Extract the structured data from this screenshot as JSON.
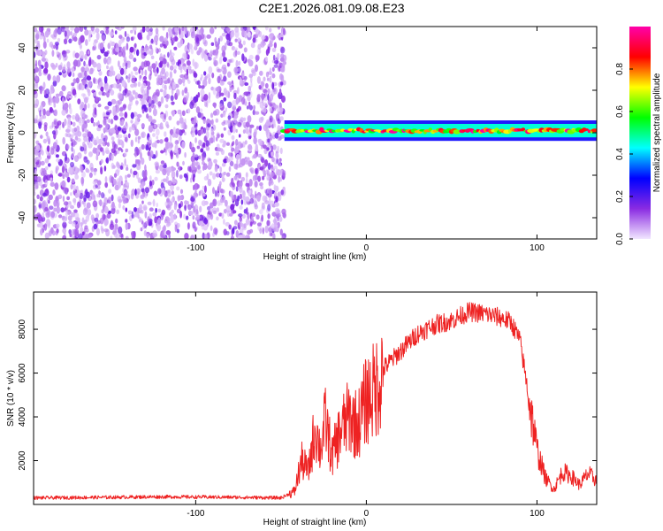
{
  "figure": {
    "title": "C2E1.2026.081.09.08.E23"
  },
  "chart_data": [
    {
      "type": "heatmap",
      "xlabel": "Height of straight line (km)",
      "ylabel": "Frequency (Hz)",
      "xlim": [
        -195,
        135
      ],
      "ylim": [
        -50,
        50
      ],
      "x_ticks": [
        -100,
        0,
        100
      ],
      "y_ticks": [
        -40,
        -20,
        0,
        20,
        40
      ],
      "colorbar": {
        "label": "Normalized spectral amplitude",
        "range": [
          0,
          1
        ],
        "ticks": [
          "0.0",
          "0.2",
          "0.4",
          "0.6",
          "0.8"
        ],
        "colors": [
          "#f2e6ff",
          "#8a2be2",
          "#0000ff",
          "#00ffff",
          "#00ff00",
          "#ffff00",
          "#ff0000",
          "#ff00aa"
        ]
      },
      "regions": [
        {
          "name": "noise",
          "x_range": [
            -195,
            -48
          ],
          "freq_range": [
            -50,
            50
          ],
          "amplitude_range": [
            0.0,
            0.2
          ]
        },
        {
          "name": "signal",
          "x_range": [
            -48,
            135
          ],
          "center_frequency": 1,
          "bandwidth": 4
        }
      ]
    },
    {
      "type": "line",
      "xlabel": "Height of straight line (km)",
      "ylabel": "SNR (10 * v/v)",
      "xlim": [
        -195,
        135
      ],
      "ylim": [
        0,
        9700
      ],
      "x_ticks": [
        -100,
        0,
        100
      ],
      "y_ticks": [
        2000,
        4000,
        6000,
        8000
      ],
      "color": "#ee2222",
      "x": [
        -195,
        -160,
        -120,
        -80,
        -50,
        -42,
        -38,
        -34,
        -30,
        -27,
        -24,
        -20,
        -15,
        -10,
        -5,
        0,
        5,
        10,
        20,
        30,
        40,
        50,
        60,
        70,
        80,
        85,
        90,
        95,
        100,
        105,
        110,
        115,
        120,
        125,
        130,
        135
      ],
      "y": [
        300,
        320,
        350,
        330,
        300,
        600,
        2000,
        1500,
        3500,
        2500,
        3800,
        2200,
        3400,
        4000,
        3600,
        4800,
        5200,
        6200,
        7000,
        7800,
        8200,
        8400,
        8800,
        8700,
        8500,
        8300,
        7500,
        5000,
        2500,
        1200,
        700,
        1500,
        1300,
        900,
        1400,
        1100
      ]
    }
  ]
}
